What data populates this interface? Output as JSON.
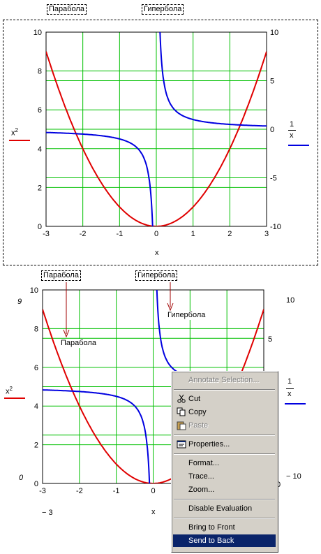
{
  "top": {
    "label_left": "Парабола",
    "label_right": "Гипербола",
    "y_label_left_base": "x",
    "y_label_left_exp": "2",
    "y_label_right_num": "1",
    "y_label_right_den": "x",
    "x_label": "x",
    "left_ticks": [
      "10",
      "8",
      "6",
      "4",
      "2",
      "0"
    ],
    "right_ticks": [
      "10",
      "5",
      "0",
      "-5",
      "-10"
    ],
    "x_ticks": [
      "-3",
      "-2",
      "-1",
      "0",
      "1",
      "2",
      "3"
    ]
  },
  "bottom": {
    "label_left": "Парабола",
    "label_right": "Гипербола",
    "annot_left": "Парабола",
    "annot_right": "Гипербола",
    "y_label_left_base": "x",
    "y_label_left_exp": "2",
    "y_label_right_num": "1",
    "y_label_right_den": "x",
    "x_label": "x",
    "left_ticks": [
      "10",
      "8",
      "6",
      "4",
      "2",
      "0"
    ],
    "right_ticks": [
      "10",
      "5"
    ],
    "x_ticks": [
      "-3",
      "-2",
      "-1",
      "0"
    ],
    "stray_top_left": "9",
    "stray_mid_left": "0",
    "stray_bottom_left": "− 3",
    "stray_right_bottom": "− 10",
    "stray_right_zero": "0"
  },
  "chart_data": [
    {
      "type": "line",
      "x": [
        -3,
        -2.5,
        -2,
        -1.5,
        -1,
        -0.5,
        0,
        0.5,
        1,
        1.5,
        2,
        2.5,
        3
      ],
      "series": [
        {
          "name": "Парабола",
          "color": "#e00000",
          "axis": "left",
          "values": [
            9,
            6.25,
            4,
            2.25,
            1,
            0.25,
            0,
            0.25,
            1,
            2.25,
            4,
            6.25,
            9
          ]
        },
        {
          "name": "Гипербола",
          "color": "#0000e0",
          "axis": "right",
          "function": "1/x"
        }
      ],
      "xlabel": "x",
      "ylabel": "x^2",
      "y2label": "1/x",
      "xlim": [
        -3,
        3
      ],
      "ylim": [
        0,
        10
      ],
      "y2lim": [
        -10,
        10
      ],
      "grid": true
    },
    {
      "type": "line",
      "x": [
        -3,
        -2.5,
        -2,
        -1.5,
        -1,
        -0.5,
        0,
        0.5,
        1,
        1.5,
        2,
        2.5,
        3
      ],
      "series": [
        {
          "name": "Парабола",
          "color": "#e00000",
          "axis": "left",
          "values": [
            9,
            6.25,
            4,
            2.25,
            1,
            0.25,
            0,
            0.25,
            1,
            2.25,
            4,
            6.25,
            9
          ]
        },
        {
          "name": "Гипербола",
          "color": "#0000e0",
          "axis": "right",
          "function": "1/x"
        }
      ],
      "xlabel": "x",
      "ylabel": "x^2",
      "y2label": "1/x",
      "xlim": [
        -3,
        3
      ],
      "ylim": [
        0,
        10
      ],
      "y2lim": [
        -10,
        10
      ],
      "grid": true
    }
  ],
  "context_menu": {
    "items": [
      {
        "label": "Annotate Selection...",
        "disabled": true,
        "icon": ""
      },
      {
        "sep": true
      },
      {
        "label": "Cut",
        "disabled": false,
        "icon": "scissors-icon"
      },
      {
        "label": "Copy",
        "disabled": false,
        "icon": "copy-icon"
      },
      {
        "label": "Paste",
        "disabled": true,
        "icon": "paste-icon"
      },
      {
        "sep": true
      },
      {
        "label": "Properties...",
        "disabled": false,
        "icon": "properties-icon"
      },
      {
        "sep": true
      },
      {
        "label": "Format...",
        "disabled": false,
        "icon": ""
      },
      {
        "label": "Trace...",
        "disabled": false,
        "icon": ""
      },
      {
        "label": "Zoom...",
        "disabled": false,
        "icon": ""
      },
      {
        "sep": true
      },
      {
        "label": "Disable Evaluation",
        "disabled": false,
        "icon": ""
      },
      {
        "sep": true
      },
      {
        "label": "Bring to Front",
        "disabled": false,
        "icon": ""
      },
      {
        "label": "Send to Back",
        "disabled": false,
        "selected": true,
        "icon": ""
      }
    ]
  }
}
